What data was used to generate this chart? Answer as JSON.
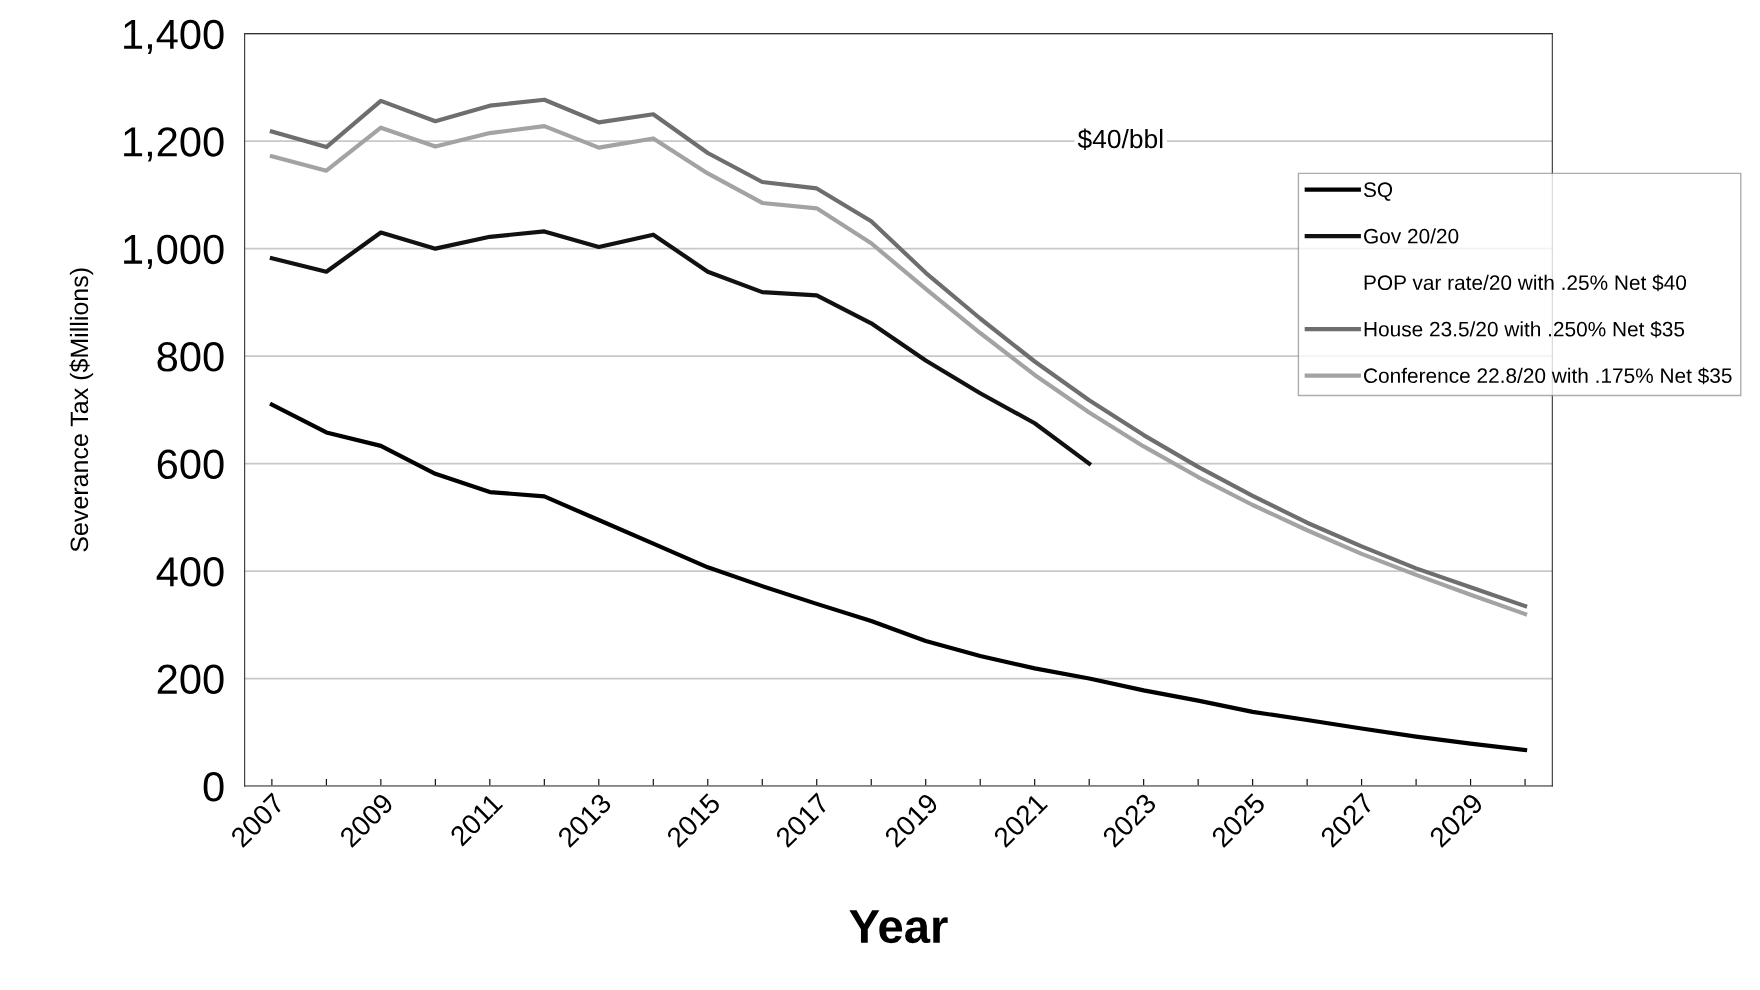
{
  "chart_data": {
    "type": "line",
    "xlabel": "Year",
    "ylabel": "Severance Tax ($Millions)",
    "categories": [
      "2007",
      null,
      "2009",
      null,
      "2011",
      null,
      "2013",
      null,
      "2015",
      null,
      "2017",
      null,
      "2019",
      null,
      "2021",
      null,
      "2023",
      null,
      "2025",
      null,
      "2027",
      null,
      "2029",
      null
    ],
    "series": [
      {
        "name": "SQ",
        "color": "#000000",
        "values": [
          710,
          658,
          633,
          581,
          547,
          539,
          495,
          451,
          407,
          372,
          339,
          307,
          270,
          242,
          219,
          200,
          178,
          159,
          138,
          123,
          107,
          92,
          79,
          67
        ]
      },
      {
        "name": "Gov 20/20",
        "color": "#111111",
        "values": [
          982,
          957,
          1030,
          1000,
          1022,
          1032,
          1003,
          1026,
          957,
          919,
          913,
          861,
          792,
          731,
          675,
          600,
          null,
          null,
          null,
          null,
          null,
          null,
          null,
          null
        ]
      },
      {
        "name": "POP var rate/20 with .25% Net $40",
        "values": [
          null,
          null,
          null,
          null,
          null,
          null,
          null,
          null,
          null,
          null,
          null,
          null,
          null,
          null,
          null,
          null,
          null,
          null,
          null,
          null,
          null,
          null,
          null,
          null
        ]
      },
      {
        "name": "House 23.5/20 with .250% Net $35",
        "color": "#6e6e6e",
        "values": [
          1218,
          1189,
          1275,
          1237,
          1266,
          1277,
          1235,
          1250,
          1178,
          1124,
          1112,
          1051,
          955,
          870,
          790,
          718,
          653,
          594,
          540,
          490,
          446,
          405,
          370,
          335
        ]
      },
      {
        "name": "Conference 22.8/20 with .175% Net $35",
        "color": "#a3a3a3",
        "values": [
          1172,
          1145,
          1225,
          1190,
          1215,
          1228,
          1188,
          1205,
          1140,
          1085,
          1075,
          1010,
          925,
          843,
          765,
          695,
          632,
          575,
          523,
          476,
          432,
          393,
          356,
          320
        ]
      }
    ],
    "ylim": [
      0,
      1400
    ],
    "yticks": [
      0,
      200,
      400,
      600,
      800,
      {
        "value": 1000,
        "label": "1,000"
      },
      {
        "value": 1200,
        "label": "1,200"
      },
      {
        "value": 1400,
        "label": "1,400"
      }
    ],
    "grid": "y",
    "legend": "top right",
    "marker": "none",
    "line_style": "solid",
    "annotations": [
      "$40/bbl"
    ]
  }
}
